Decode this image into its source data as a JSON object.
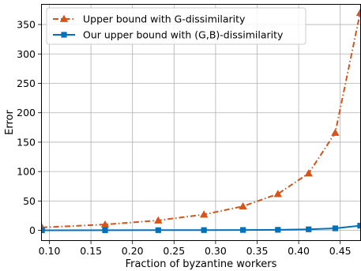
{
  "chart_data": {
    "type": "line",
    "xlabel": "Fraction of byzantine workers",
    "ylabel": "Error",
    "xlim": [
      0.09,
      0.475
    ],
    "ylim": [
      -18,
      385
    ],
    "xticks": [
      0.1,
      0.15,
      0.2,
      0.25,
      0.3,
      0.35,
      0.4,
      0.45
    ],
    "xtick_labels": [
      "0.10",
      "0.15",
      "0.20",
      "0.25",
      "0.30",
      "0.35",
      "0.40",
      "0.45"
    ],
    "yticks": [
      0,
      50,
      100,
      150,
      200,
      250,
      300,
      350
    ],
    "ytick_labels": [
      "0",
      "50",
      "100",
      "150",
      "200",
      "250",
      "300",
      "350"
    ],
    "grid": true,
    "legend_position": "top-left",
    "series": [
      {
        "name": "Upper bound with G-dissimilarity",
        "color": "#d95319",
        "marker": "triangle",
        "line_style": "dash-dot",
        "x": [
          0.091,
          0.167,
          0.231,
          0.286,
          0.333,
          0.375,
          0.412,
          0.444,
          0.474
        ],
        "y": [
          5,
          10,
          17,
          27,
          41,
          62,
          97,
          166,
          370
        ]
      },
      {
        "name": "Our upper bound with (G,B)-dissimilarity",
        "color": "#0072bd",
        "marker": "square",
        "line_style": "solid",
        "x": [
          0.091,
          0.167,
          0.231,
          0.286,
          0.333,
          0.375,
          0.412,
          0.444,
          0.474
        ],
        "y": [
          0.2,
          0.3,
          0.4,
          0.5,
          0.7,
          1.0,
          1.8,
          3.5,
          8
        ]
      }
    ]
  }
}
